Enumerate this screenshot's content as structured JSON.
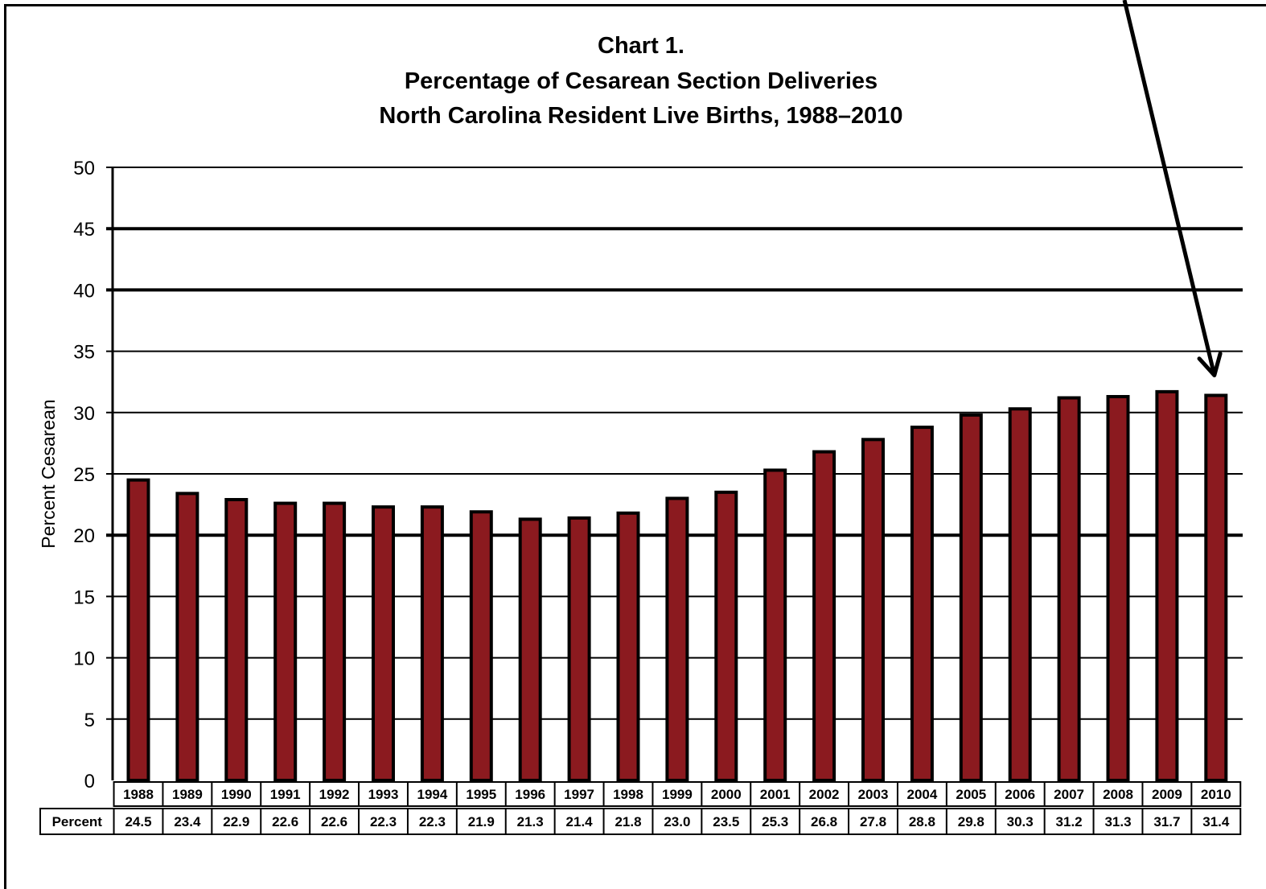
{
  "chart_data": {
    "type": "bar",
    "title": "Chart 1.",
    "subtitle_lines": [
      "Percentage of Cesarean Section Deliveries",
      "North Carolina Resident Live Births, 1988–2010"
    ],
    "xlabel": "",
    "ylabel": "Percent Cesarean",
    "ylim": [
      0,
      50
    ],
    "yticks": [
      "0",
      "5",
      "10",
      "15",
      "20",
      "25",
      "30",
      "35",
      "40",
      "45",
      "50"
    ],
    "grid": true,
    "legend": "none",
    "categories": [
      "1988",
      "1989",
      "1990",
      "1991",
      "1992",
      "1993",
      "1994",
      "1995",
      "1996",
      "1997",
      "1998",
      "1999",
      "2000",
      "2001",
      "2002",
      "2003",
      "2004",
      "2005",
      "2006",
      "2007",
      "2008",
      "2009",
      "2010"
    ],
    "values": [
      24.5,
      23.4,
      22.9,
      22.6,
      22.6,
      22.3,
      22.3,
      21.9,
      21.3,
      21.4,
      21.8,
      23.0,
      23.5,
      25.3,
      26.8,
      27.8,
      28.8,
      29.8,
      30.3,
      31.2,
      31.3,
      31.7,
      31.4
    ],
    "table": {
      "row_header": "Percent",
      "cells": [
        "24.5",
        "23.4",
        "22.9",
        "22.6",
        "22.6",
        "22.3",
        "22.3",
        "21.9",
        "21.3",
        "21.4",
        "21.8",
        "23.0",
        "23.5",
        "25.3",
        "26.8",
        "27.8",
        "28.8",
        "29.8",
        "30.3",
        "31.2",
        "31.3",
        "31.7",
        "31.4"
      ]
    },
    "annotation": {
      "type": "arrow",
      "points_to": "2010"
    },
    "colors": {
      "bar_fill": "#8b1a1f",
      "bar_edge": "#000000",
      "grid": "#000000",
      "background": "#ffffff"
    }
  }
}
